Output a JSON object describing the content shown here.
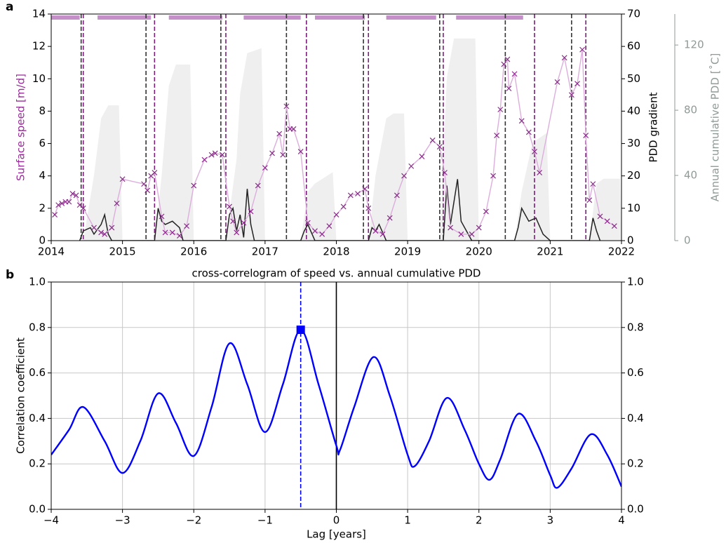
{
  "chart_data": [
    {
      "type": "line",
      "panel_label": "a",
      "xlim": [
        2014,
        2022
      ],
      "xticks": [
        2014,
        2015,
        2016,
        2017,
        2018,
        2019,
        2020,
        2021,
        2022
      ],
      "ylim": [
        0,
        14
      ],
      "yticks": [
        0,
        2,
        4,
        6,
        8,
        10,
        12,
        14
      ],
      "ylabel": "Surface speed [m/d]",
      "ylabel_color": "#9a2b9a",
      "y2lim": [
        0,
        70
      ],
      "y2ticks": [
        0,
        10,
        20,
        30,
        40,
        50,
        60,
        70
      ],
      "y2label": "PDD gradient",
      "y3lim": [
        0,
        139
      ],
      "y3ticks": [
        0,
        40,
        80,
        120
      ],
      "y3label": "Annual cumulative PDD [˚C]",
      "y3label_color": "#8f9a96",
      "spans": {
        "color": "#c590c9",
        "ranges": [
          [
            2014.0,
            2014.4
          ],
          [
            2014.65,
            2015.4
          ],
          [
            2015.65,
            2016.4
          ],
          [
            2016.7,
            2017.5
          ],
          [
            2017.7,
            2018.4
          ],
          [
            2018.7,
            2019.4
          ],
          [
            2019.68,
            2020.62
          ]
        ]
      },
      "vlines": [
        {
          "color": "#333333",
          "dashed": true,
          "x": [
            2014.42,
            2015.33,
            2016.38,
            2017.3,
            2018.38,
            2019.45,
            2020.37,
            2021.3
          ]
        },
        {
          "color": "#7a1f7a",
          "dashed": true,
          "x": [
            2014.45,
            2015.45,
            2016.45,
            2017.58,
            2018.45,
            2019.5,
            2020.78,
            2021.5
          ]
        }
      ],
      "series": [
        {
          "kind": "area",
          "axis": "y3",
          "color": "#efefef",
          "x": [
            2014.45,
            2014.6,
            2014.7,
            2014.8,
            2014.95,
            2015.0,
            2015.45,
            2015.55,
            2015.65,
            2015.75,
            2015.95,
            2016.0,
            2016.45,
            2016.6,
            2016.65,
            2016.75,
            2016.95,
            2017.0,
            2017.5,
            2017.6,
            2017.7,
            2017.95,
            2018.0,
            2018.45,
            2018.55,
            2018.7,
            2018.8,
            2018.95,
            2019.0,
            2019.45,
            2019.55,
            2019.65,
            2019.95,
            2020.0,
            2020.5,
            2020.6,
            2020.75,
            2020.95,
            2021.0,
            2021.55,
            2021.65,
            2021.75,
            2021.98,
            2022.0
          ],
          "values": [
            0,
            40,
            75,
            83,
            83,
            0,
            0,
            40,
            95,
            108,
            108,
            0,
            0,
            50,
            90,
            115,
            118,
            0,
            0,
            30,
            35,
            42,
            0,
            0,
            40,
            75,
            78,
            78,
            0,
            0,
            100,
            124,
            124,
            0,
            0,
            30,
            60,
            66,
            0,
            0,
            35,
            38,
            38,
            0
          ]
        },
        {
          "kind": "line",
          "axis": "y2",
          "color": "#222222",
          "x": [
            2014.4,
            2014.45,
            2014.55,
            2014.6,
            2014.7,
            2014.75,
            2014.8,
            2014.85,
            2015.45,
            2015.5,
            2015.55,
            2015.6,
            2015.7,
            2015.8,
            2015.85,
            2016.45,
            2016.5,
            2016.55,
            2016.6,
            2016.65,
            2016.7,
            2016.75,
            2016.8,
            2016.85,
            2017.5,
            2017.55,
            2017.6,
            2017.7,
            2018.45,
            2018.5,
            2018.55,
            2018.6,
            2018.7,
            2019.5,
            2019.55,
            2019.6,
            2019.7,
            2019.75,
            2019.85,
            2019.9,
            2020.5,
            2020.55,
            2020.6,
            2020.7,
            2020.8,
            2020.9,
            2021.0,
            2021.55,
            2021.6,
            2021.65,
            2021.7
          ],
          "values": [
            0,
            3,
            4,
            2,
            5,
            8,
            2,
            0,
            0,
            10,
            6,
            5,
            6,
            4,
            0,
            0,
            8,
            10,
            3,
            8,
            1,
            16,
            5,
            0,
            0,
            3,
            5,
            0,
            0,
            4,
            3,
            5,
            0,
            0,
            17,
            5,
            19,
            6,
            2,
            0,
            0,
            4,
            10,
            6,
            7,
            2,
            0,
            0,
            7,
            3,
            0
          ]
        },
        {
          "kind": "markers-line",
          "axis": "y",
          "color": "#8b2b8b",
          "line_color": "#dcaedc",
          "x": [
            2014.05,
            2014.1,
            2014.15,
            2014.2,
            2014.25,
            2014.3,
            2014.35,
            2014.4,
            2014.45,
            2014.6,
            2014.7,
            2014.75,
            2014.85,
            2014.92,
            2015.0,
            2015.3,
            2015.35,
            2015.4,
            2015.45,
            2015.55,
            2015.6,
            2015.7,
            2015.8,
            2015.9,
            2016.0,
            2016.15,
            2016.25,
            2016.3,
            2016.4,
            2016.5,
            2016.55,
            2016.6,
            2016.7,
            2016.8,
            2016.9,
            2017.0,
            2017.1,
            2017.2,
            2017.25,
            2017.3,
            2017.35,
            2017.4,
            2017.5,
            2017.6,
            2017.7,
            2017.8,
            2017.9,
            2018.0,
            2018.1,
            2018.2,
            2018.3,
            2018.4,
            2018.45,
            2018.55,
            2018.65,
            2018.75,
            2018.85,
            2018.95,
            2019.05,
            2019.2,
            2019.35,
            2019.45,
            2019.52,
            2019.6,
            2019.75,
            2019.9,
            2020.0,
            2020.1,
            2020.2,
            2020.25,
            2020.3,
            2020.35,
            2020.4,
            2020.42,
            2020.5,
            2020.6,
            2020.7,
            2020.78,
            2020.85,
            2021.1,
            2021.2,
            2021.3,
            2021.38,
            2021.45,
            2021.5,
            2021.55,
            2021.6,
            2021.7,
            2021.8,
            2021.9
          ],
          "values": [
            1.6,
            2.2,
            2.3,
            2.4,
            2.4,
            2.9,
            2.8,
            2.2,
            2.0,
            0.8,
            0.5,
            0.4,
            0.8,
            2.3,
            3.8,
            3.5,
            3.1,
            4.0,
            4.2,
            1.5,
            0.5,
            0.5,
            0.3,
            0.9,
            3.4,
            5.0,
            5.3,
            5.4,
            5.3,
            2.1,
            1.2,
            0.5,
            1.1,
            1.8,
            3.4,
            4.5,
            5.4,
            6.6,
            5.3,
            8.3,
            6.9,
            6.9,
            5.5,
            1.1,
            0.6,
            0.4,
            0.9,
            1.6,
            2.1,
            2.8,
            2.9,
            3.2,
            2.0,
            0.6,
            0.4,
            1.4,
            2.8,
            4.0,
            4.6,
            5.2,
            6.2,
            5.8,
            4.2,
            0.8,
            0.4,
            0.4,
            0.8,
            1.8,
            4.0,
            6.5,
            8.1,
            10.9,
            11.2,
            9.4,
            10.3,
            7.4,
            6.7,
            5.5,
            4.2,
            9.8,
            11.3,
            9.0,
            9.7,
            11.8,
            6.5,
            2.5,
            3.5,
            1.5,
            1.2,
            0.9
          ]
        }
      ]
    },
    {
      "type": "line",
      "panel_label": "b",
      "title": "cross-correlogram of speed vs. annual cumulative PDD",
      "xlabel": "Lag [years]",
      "ylabel": "Correlation coefficient",
      "grid": true,
      "xlim": [
        -4,
        4
      ],
      "xticks": [
        {
          "value": -4,
          "label": "−4"
        },
        {
          "value": -3,
          "label": "−3"
        },
        {
          "value": -2,
          "label": "−2"
        },
        {
          "value": -1,
          "label": "−1"
        },
        0,
        1,
        2,
        3,
        4
      ],
      "ylim": [
        0,
        1
      ],
      "yticks": [
        {
          "value": 0,
          "label": "0.0"
        },
        0.2,
        0.4,
        0.6,
        0.8,
        {
          "value": 1,
          "label": "1.0"
        }
      ],
      "y2lim": [
        0,
        1
      ],
      "y2ticks": [
        {
          "value": 0,
          "label": "0.0"
        },
        0.2,
        0.4,
        0.6,
        0.8,
        {
          "value": 1,
          "label": "1.0"
        }
      ],
      "vlines": [
        {
          "color": "#0000ff",
          "dashed": true,
          "x": [
            -0.5
          ]
        },
        {
          "color": "#000000",
          "dashed": false,
          "x": [
            0
          ]
        }
      ],
      "marker": {
        "x": -0.5,
        "y": 0.79,
        "color": "#0000ff"
      },
      "series": [
        {
          "kind": "line",
          "axis": "y",
          "smooth": true,
          "color": "#0000ff",
          "x": [
            -4,
            -3.75,
            -3.55,
            -3.25,
            -3.0,
            -2.75,
            -2.5,
            -2.25,
            -2.0,
            -1.75,
            -1.5,
            -1.25,
            -1.0,
            -0.75,
            -0.5,
            -0.25,
            0,
            0.05,
            0.25,
            0.52,
            0.75,
            1.0,
            1.1,
            1.3,
            1.55,
            1.8,
            2.0,
            2.15,
            2.3,
            2.55,
            2.8,
            3.0,
            3.1,
            3.3,
            3.57,
            3.8,
            4.0
          ],
          "values": [
            0.24,
            0.35,
            0.45,
            0.3,
            0.16,
            0.3,
            0.51,
            0.38,
            0.235,
            0.45,
            0.73,
            0.55,
            0.34,
            0.55,
            0.79,
            0.55,
            0.28,
            0.26,
            0.45,
            0.67,
            0.5,
            0.24,
            0.19,
            0.3,
            0.49,
            0.35,
            0.2,
            0.13,
            0.22,
            0.42,
            0.3,
            0.15,
            0.095,
            0.18,
            0.33,
            0.24,
            0.1
          ]
        }
      ]
    }
  ]
}
